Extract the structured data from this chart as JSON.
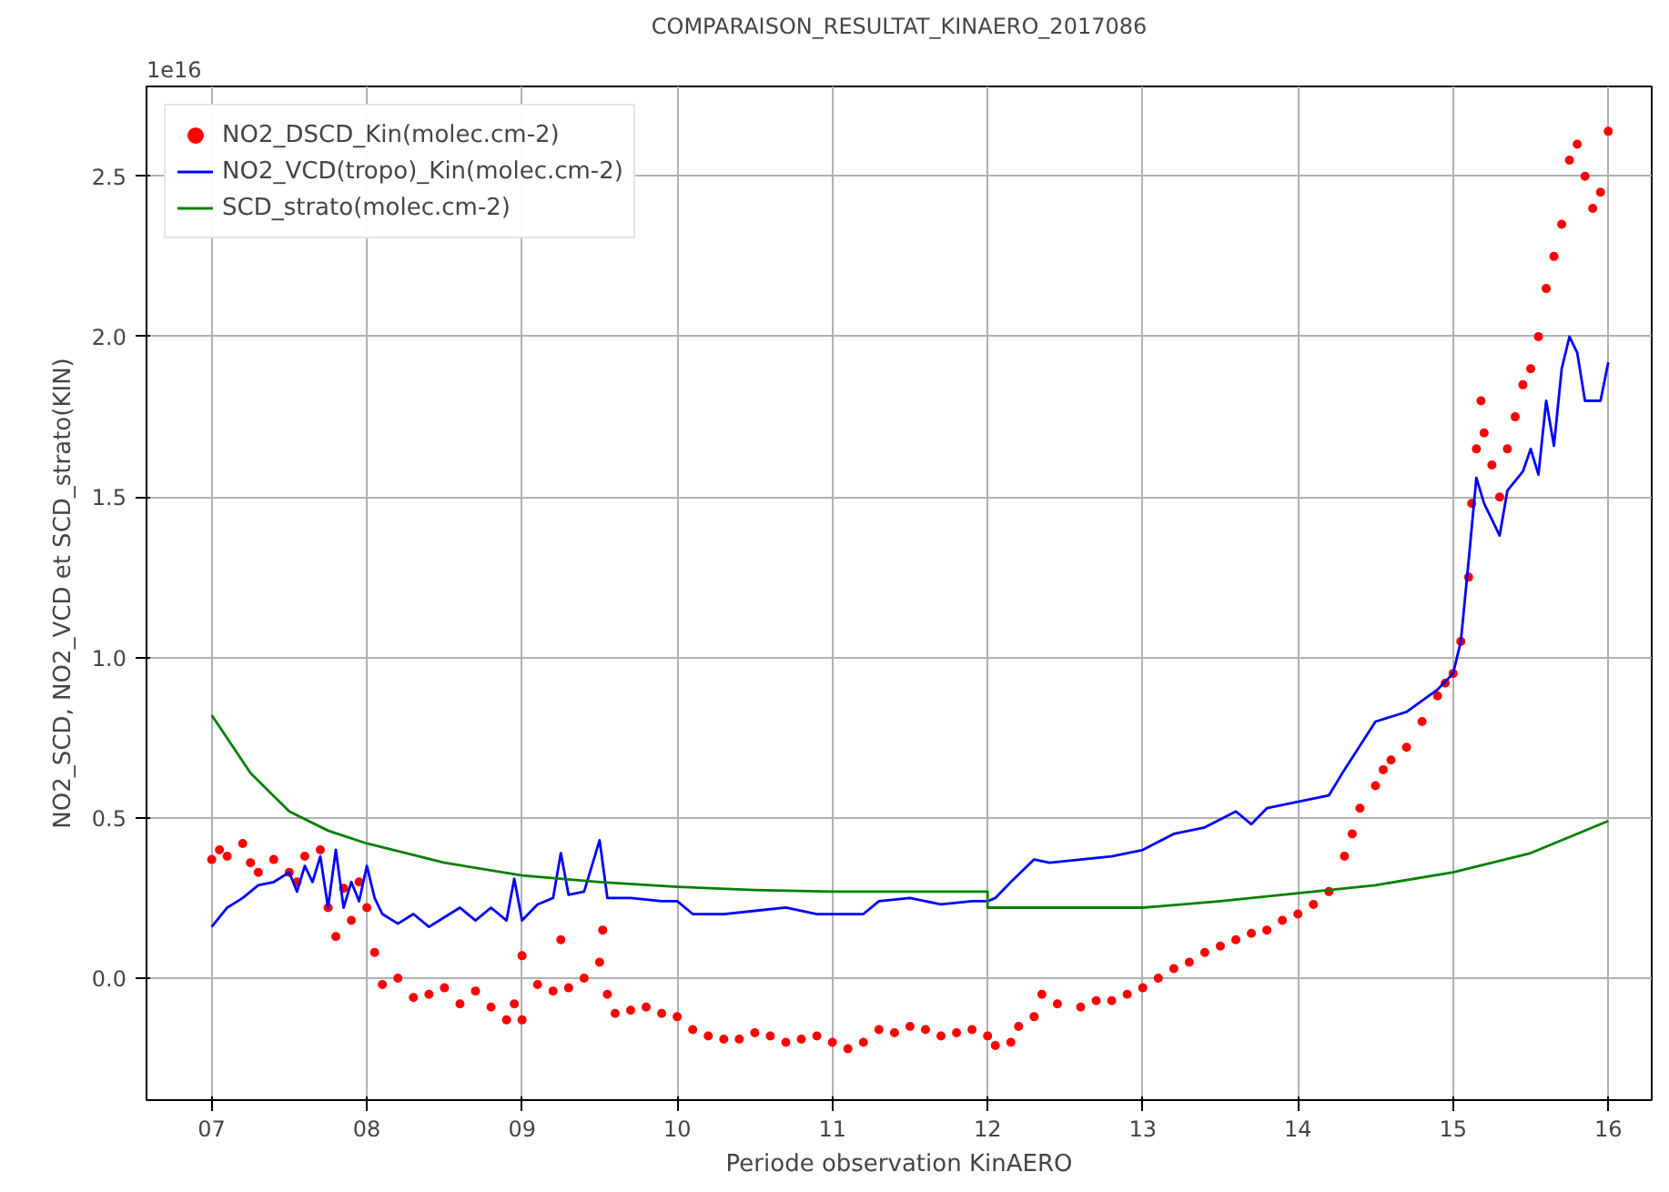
{
  "chart_data": {
    "type": "line",
    "title": "COMPARAISON_RESULTAT_KINAERO_2017086",
    "xlabel": "Periode observation KinAERO",
    "ylabel": "NO2_SCD, NO2_VCD et SCD_strato(KIN)",
    "annotations": [
      "1e16"
    ],
    "xlim": [
      6.58,
      16.28
    ],
    "ylim": [
      -0.38,
      2.78
    ],
    "xticks": [
      {
        "value": 7,
        "label": "07"
      },
      {
        "value": 8,
        "label": "08"
      },
      {
        "value": 9,
        "label": "09"
      },
      {
        "value": 10,
        "label": "10"
      },
      {
        "value": 11,
        "label": "11"
      },
      {
        "value": 12,
        "label": "12"
      },
      {
        "value": 13,
        "label": "13"
      },
      {
        "value": 14,
        "label": "14"
      },
      {
        "value": 15,
        "label": "15"
      },
      {
        "value": 16,
        "label": "16"
      }
    ],
    "yticks": [
      {
        "value": 0,
        "label": "0.0"
      },
      {
        "value": 0.5,
        "label": "0.5"
      },
      {
        "value": 1,
        "label": "1.0"
      },
      {
        "value": 1.5,
        "label": "1.5"
      },
      {
        "value": 2,
        "label": "2.0"
      },
      {
        "value": 2.5,
        "label": "2.5"
      }
    ],
    "grid": true,
    "legend": "top left",
    "series": [
      {
        "name": "NO2_DSCD_Kin(molec.cm-2)",
        "type": "scatter",
        "marker": "circle",
        "color": "#ff0000",
        "x": [
          7.0,
          7.05,
          7.1,
          7.2,
          7.25,
          7.3,
          7.4,
          7.5,
          7.55,
          7.6,
          7.7,
          7.75,
          7.8,
          7.85,
          7.9,
          7.95,
          8.0,
          8.05,
          8.1,
          8.2,
          8.3,
          8.4,
          8.5,
          8.6,
          8.7,
          8.8,
          8.9,
          8.95,
          9.0,
          9.0,
          9.1,
          9.2,
          9.25,
          9.3,
          9.4,
          9.5,
          9.52,
          9.55,
          9.6,
          9.7,
          9.8,
          9.9,
          10.0,
          10.1,
          10.2,
          10.3,
          10.4,
          10.5,
          10.6,
          10.7,
          10.8,
          10.9,
          11.0,
          11.1,
          11.2,
          11.3,
          11.4,
          11.5,
          11.6,
          11.7,
          11.8,
          11.9,
          12.0,
          12.05,
          12.15,
          12.2,
          12.3,
          12.35,
          12.45,
          12.6,
          12.7,
          12.8,
          12.9,
          13.0,
          13.1,
          13.2,
          13.3,
          13.4,
          13.5,
          13.6,
          13.7,
          13.8,
          13.9,
          14.0,
          14.1,
          14.2,
          14.3,
          14.35,
          14.4,
          14.5,
          14.55,
          14.6,
          14.7,
          14.8,
          14.9,
          14.95,
          15.0,
          15.05,
          15.1,
          15.12,
          15.15,
          15.18,
          15.2,
          15.25,
          15.3,
          15.35,
          15.4,
          15.45,
          15.5,
          15.55,
          15.6,
          15.65,
          15.7,
          15.75,
          15.8,
          15.85,
          15.9,
          15.95,
          16.0
        ],
        "values": [
          0.37,
          0.4,
          0.38,
          0.42,
          0.36,
          0.33,
          0.37,
          0.33,
          0.3,
          0.38,
          0.4,
          0.22,
          0.13,
          0.28,
          0.18,
          0.3,
          0.22,
          0.08,
          -0.02,
          0.0,
          -0.06,
          -0.05,
          -0.03,
          -0.08,
          -0.04,
          -0.09,
          -0.13,
          -0.08,
          -0.13,
          0.07,
          -0.02,
          -0.04,
          0.12,
          -0.03,
          0.0,
          0.05,
          0.15,
          -0.05,
          -0.11,
          -0.1,
          -0.09,
          -0.11,
          -0.12,
          -0.16,
          -0.18,
          -0.19,
          -0.19,
          -0.17,
          -0.18,
          -0.2,
          -0.19,
          -0.18,
          -0.2,
          -0.22,
          -0.2,
          -0.16,
          -0.17,
          -0.15,
          -0.16,
          -0.18,
          -0.17,
          -0.16,
          -0.18,
          -0.21,
          -0.2,
          -0.15,
          -0.12,
          -0.05,
          -0.08,
          -0.09,
          -0.07,
          -0.07,
          -0.05,
          -0.03,
          0.0,
          0.03,
          0.05,
          0.08,
          0.1,
          0.12,
          0.14,
          0.15,
          0.18,
          0.2,
          0.23,
          0.27,
          0.38,
          0.45,
          0.53,
          0.6,
          0.65,
          0.68,
          0.72,
          0.8,
          0.88,
          0.92,
          0.95,
          1.05,
          1.25,
          1.48,
          1.65,
          1.8,
          1.7,
          1.6,
          1.5,
          1.65,
          1.75,
          1.85,
          1.9,
          2.0,
          2.15,
          2.25,
          2.35,
          2.55,
          2.6,
          2.5,
          2.4,
          2.45,
          2.64
        ]
      },
      {
        "name": "NO2_VCD(tropo)_Kin(molec.cm-2)",
        "color": "#0000ff",
        "x": [
          7.0,
          7.1,
          7.2,
          7.3,
          7.4,
          7.5,
          7.55,
          7.6,
          7.65,
          7.7,
          7.75,
          7.8,
          7.85,
          7.9,
          7.95,
          8.0,
          8.05,
          8.1,
          8.2,
          8.3,
          8.4,
          8.5,
          8.6,
          8.7,
          8.8,
          8.9,
          8.95,
          9.0,
          9.1,
          9.2,
          9.25,
          9.3,
          9.4,
          9.5,
          9.55,
          9.7,
          9.9,
          10.0,
          10.1,
          10.3,
          10.5,
          10.7,
          10.9,
          11.0,
          11.2,
          11.3,
          11.5,
          11.7,
          11.9,
          12.0,
          12.05,
          12.15,
          12.3,
          12.4,
          12.6,
          12.8,
          13.0,
          13.2,
          13.4,
          13.6,
          13.7,
          13.8,
          14.0,
          14.2,
          14.3,
          14.5,
          14.7,
          14.9,
          15.0,
          15.05,
          15.1,
          15.15,
          15.2,
          15.25,
          15.3,
          15.35,
          15.45,
          15.5,
          15.55,
          15.6,
          15.65,
          15.7,
          15.75,
          15.8,
          15.85,
          15.9,
          15.95,
          16.0
        ],
        "values": [
          0.16,
          0.22,
          0.25,
          0.29,
          0.3,
          0.33,
          0.27,
          0.35,
          0.3,
          0.38,
          0.22,
          0.4,
          0.22,
          0.3,
          0.24,
          0.35,
          0.25,
          0.2,
          0.17,
          0.2,
          0.16,
          0.19,
          0.22,
          0.18,
          0.22,
          0.18,
          0.31,
          0.18,
          0.23,
          0.25,
          0.39,
          0.26,
          0.27,
          0.43,
          0.25,
          0.25,
          0.24,
          0.24,
          0.2,
          0.2,
          0.21,
          0.22,
          0.2,
          0.2,
          0.2,
          0.24,
          0.25,
          0.23,
          0.24,
          0.24,
          0.25,
          0.3,
          0.37,
          0.36,
          0.37,
          0.38,
          0.4,
          0.45,
          0.47,
          0.52,
          0.48,
          0.53,
          0.55,
          0.57,
          0.65,
          0.8,
          0.83,
          0.9,
          0.95,
          1.05,
          1.3,
          1.56,
          1.48,
          1.43,
          1.38,
          1.52,
          1.58,
          1.65,
          1.57,
          1.8,
          1.66,
          1.9,
          2.0,
          1.95,
          1.8,
          1.8,
          1.8,
          1.92
        ]
      },
      {
        "name": "SCD_strato(molec.cm-2)",
        "color": "#008000",
        "x": [
          7.0,
          7.25,
          7.5,
          7.75,
          8.0,
          8.5,
          9.0,
          9.5,
          10.0,
          10.5,
          11.0,
          11.5,
          12.0,
          12.0,
          12.5,
          13.0,
          13.5,
          14.0,
          14.5,
          15.0,
          15.5,
          16.0
        ],
        "values": [
          0.82,
          0.64,
          0.52,
          0.46,
          0.42,
          0.36,
          0.32,
          0.3,
          0.285,
          0.275,
          0.27,
          0.27,
          0.27,
          0.22,
          0.22,
          0.22,
          0.24,
          0.265,
          0.29,
          0.33,
          0.39,
          0.49
        ]
      }
    ]
  }
}
